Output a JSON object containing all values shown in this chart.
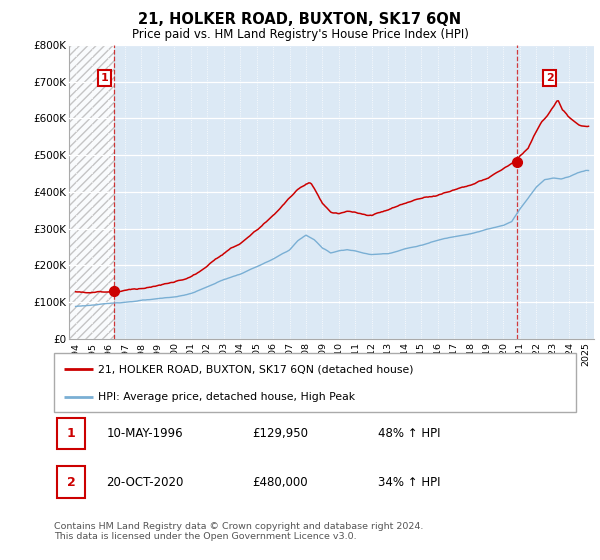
{
  "title": "21, HOLKER ROAD, BUXTON, SK17 6QN",
  "subtitle": "Price paid vs. HM Land Registry's House Price Index (HPI)",
  "ylim": [
    0,
    800000
  ],
  "yticks": [
    0,
    100000,
    200000,
    300000,
    400000,
    500000,
    600000,
    700000,
    800000
  ],
  "ytick_labels": [
    "£0",
    "£100K",
    "£200K",
    "£300K",
    "£400K",
    "£500K",
    "£600K",
    "£700K",
    "£800K"
  ],
  "xlim_start": 1993.6,
  "xlim_end": 2025.5,
  "sale1_x": 1996.36,
  "sale1_y": 129950,
  "sale1_label": "1",
  "sale2_x": 2020.8,
  "sale2_y": 480000,
  "sale2_label": "2",
  "red_line_color": "#cc0000",
  "blue_line_color": "#7aafd4",
  "chart_bg_color": "#dce9f5",
  "hatch_color": "#bbbbbb",
  "annotation_box_color": "#cc0000",
  "grid_color": "#ffffff",
  "legend_line1": "21, HOLKER ROAD, BUXTON, SK17 6QN (detached house)",
  "legend_line2": "HPI: Average price, detached house, High Peak",
  "info1_num": "1",
  "info1_date": "10-MAY-1996",
  "info1_price": "£129,950",
  "info1_hpi": "48% ↑ HPI",
  "info2_num": "2",
  "info2_date": "20-OCT-2020",
  "info2_price": "£480,000",
  "info2_hpi": "34% ↑ HPI",
  "footer": "Contains HM Land Registry data © Crown copyright and database right 2024.\nThis data is licensed under the Open Government Licence v3.0."
}
